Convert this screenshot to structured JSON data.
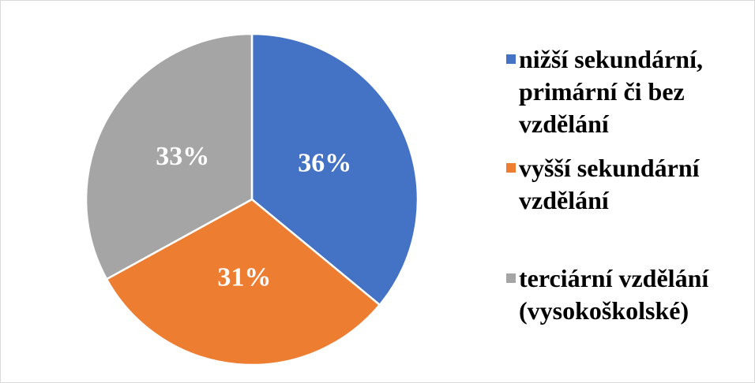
{
  "chart_data": {
    "type": "pie",
    "categories": [
      "nižší sekundární, primární či bez vzdělání",
      "vyšší sekundární vzdělání",
      "terciární vzdělání (vysokoškolské)"
    ],
    "values": [
      36,
      31,
      33
    ],
    "value_labels": [
      "36%",
      "31%",
      "33%"
    ],
    "colors": [
      "#4472c4",
      "#ed7d31",
      "#a5a5a5"
    ],
    "legend": "right"
  }
}
